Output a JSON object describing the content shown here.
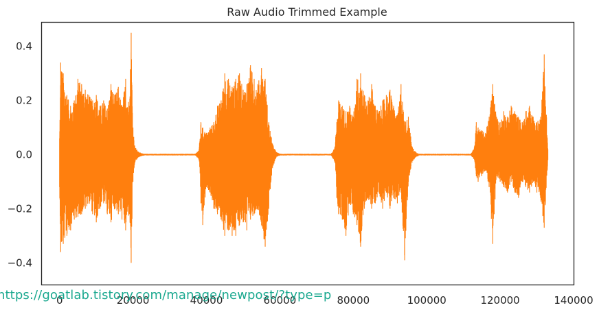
{
  "chart_data": {
    "type": "line",
    "title": "Raw Audio Trimmed Example",
    "xlabel": "",
    "ylabel": "",
    "xlim": [
      -5000,
      140000
    ],
    "ylim": [
      -0.48,
      0.49
    ],
    "xticks": [
      0,
      20000,
      40000,
      60000,
      80000,
      100000,
      120000,
      140000
    ],
    "xtick_labels": [
      "0",
      "20000",
      "40000",
      "60000",
      "80000",
      "100000",
      "120000",
      "140000"
    ],
    "yticks": [
      0.4,
      0.2,
      0.0,
      -0.2,
      -0.4
    ],
    "ytick_labels": [
      "0.4",
      "0.2",
      "0.0",
      "−0.2",
      "−0.4"
    ],
    "grid": false,
    "series": [
      {
        "color": "#ff7f0e",
        "samples": 133000,
        "bursts": [
          {
            "x_start": 0,
            "x_end": 20000,
            "max": 0.45,
            "min": -0.44
          },
          {
            "x_start": 38000,
            "x_end": 58000,
            "max": 0.33,
            "min": -0.35
          },
          {
            "x_start": 75000,
            "x_end": 96000,
            "max": 0.31,
            "min": -0.39
          },
          {
            "x_start": 113000,
            "x_end": 133000,
            "max": 0.37,
            "min": -0.33
          }
        ],
        "envelope": [
          [
            0,
            0.06,
            -0.12
          ],
          [
            300,
            0.34,
            -0.36
          ],
          [
            1000,
            0.3,
            -0.33
          ],
          [
            2000,
            0.22,
            -0.3
          ],
          [
            3000,
            0.18,
            -0.28
          ],
          [
            4000,
            0.2,
            -0.24
          ],
          [
            5000,
            0.28,
            -0.23
          ],
          [
            6000,
            0.26,
            -0.22
          ],
          [
            7000,
            0.24,
            -0.2
          ],
          [
            8000,
            0.22,
            -0.18
          ],
          [
            9000,
            0.2,
            -0.22
          ],
          [
            10000,
            0.22,
            -0.25
          ],
          [
            11000,
            0.18,
            -0.2
          ],
          [
            12000,
            0.2,
            -0.18
          ],
          [
            13000,
            0.17,
            -0.22
          ],
          [
            14000,
            0.26,
            -0.25
          ],
          [
            15000,
            0.22,
            -0.2
          ],
          [
            16000,
            0.25,
            -0.22
          ],
          [
            17000,
            0.18,
            -0.24
          ],
          [
            18000,
            0.28,
            -0.28
          ],
          [
            19000,
            0.18,
            -0.22
          ],
          [
            19500,
            0.45,
            -0.4
          ],
          [
            20000,
            0.1,
            -0.1
          ],
          [
            20500,
            0.03,
            -0.03
          ],
          [
            21500,
            0.01,
            -0.01
          ],
          [
            23000,
            0.003,
            -0.003
          ],
          [
            37000,
            0.003,
            -0.003
          ],
          [
            38000,
            0.02,
            -0.02
          ],
          [
            38500,
            0.12,
            -0.18
          ],
          [
            39000,
            0.1,
            -0.26
          ],
          [
            40000,
            0.08,
            -0.12
          ],
          [
            41000,
            0.1,
            -0.14
          ],
          [
            42000,
            0.12,
            -0.2
          ],
          [
            43000,
            0.18,
            -0.22
          ],
          [
            44000,
            0.2,
            -0.24
          ],
          [
            45000,
            0.3,
            -0.3
          ],
          [
            46000,
            0.28,
            -0.28
          ],
          [
            47000,
            0.25,
            -0.3
          ],
          [
            48000,
            0.28,
            -0.3
          ],
          [
            49000,
            0.3,
            -0.26
          ],
          [
            50000,
            0.24,
            -0.25
          ],
          [
            51000,
            0.26,
            -0.28
          ],
          [
            52000,
            0.33,
            -0.24
          ],
          [
            53000,
            0.28,
            -0.22
          ],
          [
            54000,
            0.26,
            -0.2
          ],
          [
            55000,
            0.32,
            -0.26
          ],
          [
            56000,
            0.28,
            -0.34
          ],
          [
            57000,
            0.12,
            -0.2
          ],
          [
            58000,
            0.04,
            -0.05
          ],
          [
            59000,
            0.01,
            -0.01
          ],
          [
            60000,
            0.003,
            -0.003
          ],
          [
            74000,
            0.003,
            -0.003
          ],
          [
            75000,
            0.03,
            -0.03
          ],
          [
            75500,
            0.12,
            -0.16
          ],
          [
            76000,
            0.2,
            -0.22
          ],
          [
            77000,
            0.18,
            -0.24
          ],
          [
            78000,
            0.16,
            -0.3
          ],
          [
            79000,
            0.18,
            -0.18
          ],
          [
            80000,
            0.14,
            -0.22
          ],
          [
            81000,
            0.28,
            -0.26
          ],
          [
            82000,
            0.3,
            -0.34
          ],
          [
            83000,
            0.22,
            -0.2
          ],
          [
            84000,
            0.2,
            -0.16
          ],
          [
            85000,
            0.26,
            -0.2
          ],
          [
            86000,
            0.18,
            -0.18
          ],
          [
            87000,
            0.16,
            -0.14
          ],
          [
            88000,
            0.2,
            -0.2
          ],
          [
            89000,
            0.22,
            -0.14
          ],
          [
            90000,
            0.24,
            -0.2
          ],
          [
            91000,
            0.18,
            -0.16
          ],
          [
            92000,
            0.14,
            -0.18
          ],
          [
            93000,
            0.26,
            -0.14
          ],
          [
            94000,
            0.12,
            -0.39
          ],
          [
            95000,
            0.14,
            -0.1
          ],
          [
            96000,
            0.03,
            -0.03
          ],
          [
            97000,
            0.01,
            -0.01
          ],
          [
            98000,
            0.003,
            -0.003
          ],
          [
            112000,
            0.003,
            -0.003
          ],
          [
            113000,
            0.03,
            -0.02
          ],
          [
            113500,
            0.12,
            -0.08
          ],
          [
            114000,
            0.1,
            -0.1
          ],
          [
            115000,
            0.09,
            -0.08
          ],
          [
            116000,
            0.08,
            -0.06
          ],
          [
            117000,
            0.14,
            -0.12
          ],
          [
            118000,
            0.26,
            -0.33
          ],
          [
            119000,
            0.14,
            -0.08
          ],
          [
            120000,
            0.12,
            -0.1
          ],
          [
            121000,
            0.16,
            -0.12
          ],
          [
            122000,
            0.14,
            -0.14
          ],
          [
            123000,
            0.18,
            -0.1
          ],
          [
            124000,
            0.16,
            -0.14
          ],
          [
            125000,
            0.14,
            -0.16
          ],
          [
            126000,
            0.12,
            -0.1
          ],
          [
            127000,
            0.16,
            -0.12
          ],
          [
            128000,
            0.18,
            -0.14
          ],
          [
            129000,
            0.14,
            -0.1
          ],
          [
            130000,
            0.12,
            -0.14
          ],
          [
            131000,
            0.14,
            -0.16
          ],
          [
            132000,
            0.37,
            -0.27
          ],
          [
            133000,
            0.02,
            -0.02
          ]
        ]
      }
    ]
  },
  "watermark": {
    "text": "https://goatlab.tistory.com/manage/newpost/?type=p"
  }
}
